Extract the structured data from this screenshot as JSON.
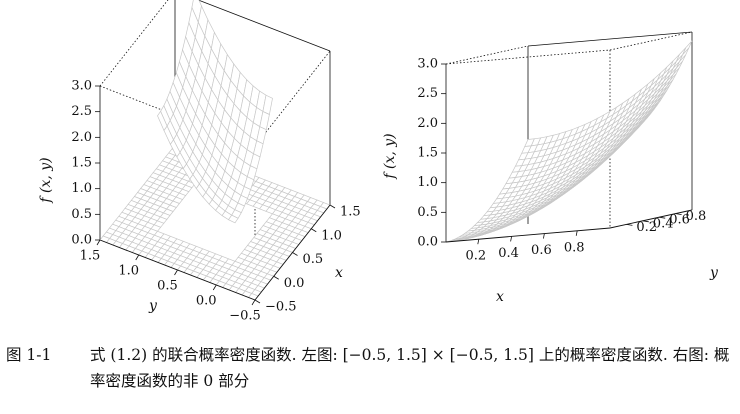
{
  "chart_data": [
    {
      "type": "surface3d",
      "panel": "left",
      "zlabel": "f (x, y)",
      "xlabel": "x",
      "ylabel": "y",
      "z_ticks": [
        "0.0",
        "0.5",
        "1.0",
        "1.5",
        "2.0",
        "2.5",
        "3.0"
      ],
      "y_ticks": [
        "1.5",
        "1.0",
        "0.5",
        "0.0",
        "−0.5"
      ],
      "x_ticks": [
        "1.5",
        "1.0",
        "0.5",
        "0.0",
        "−0.5"
      ],
      "xlim": [
        -0.5,
        1.5
      ],
      "ylim": [
        -0.5,
        1.5
      ],
      "zlim": [
        0,
        3
      ]
    },
    {
      "type": "surface3d",
      "panel": "right",
      "zlabel": "f (x, y)",
      "xlabel": "x",
      "ylabel": "y",
      "z_ticks": [
        "0.0",
        "0.5",
        "1.0",
        "1.5",
        "2.0",
        "2.5",
        "3.0"
      ],
      "x_ticks": [
        "0.2",
        "0.4",
        "0.6",
        "0.8"
      ],
      "y_ticks": [
        "0.2",
        "0.4",
        "0.6",
        "0.8"
      ],
      "xlim": [
        0,
        1
      ],
      "ylim": [
        0,
        1
      ],
      "zlim": [
        0,
        3
      ]
    }
  ],
  "caption": {
    "label": "图 1-1",
    "text": "式 (1.2) 的联合概率密度函数. 左图: [−0.5, 1.5] × [−0.5, 1.5] 上的概率密度函数. 右图: 概率密度函数的非 0 部分"
  }
}
